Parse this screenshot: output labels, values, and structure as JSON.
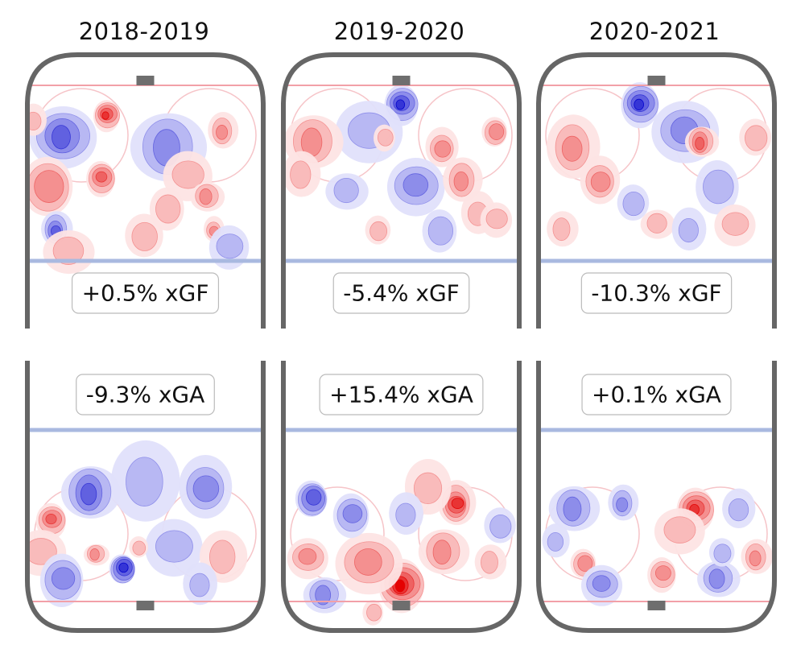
{
  "chart_data": {
    "type": "heatmap",
    "description_free": true,
    "columns": [
      {
        "season": "2018-2019",
        "offense": {
          "label": "+0.5% xGF",
          "value_pct": 0.5,
          "blobs": [
            {
              "x": -14,
              "y": 78,
              "a": 0.85,
              "s": 3.5
            },
            {
              "x": -30,
              "y": 70,
              "a": -0.6,
              "s": 8
            },
            {
              "x": 8,
              "y": 66,
              "a": -0.5,
              "s": 9
            },
            {
              "x": 28,
              "y": 72,
              "a": 0.5,
              "s": 4
            },
            {
              "x": -40,
              "y": 76,
              "a": 0.4,
              "s": 4
            },
            {
              "x": -35,
              "y": 52,
              "a": 0.45,
              "s": 8
            },
            {
              "x": -16,
              "y": 55,
              "a": 0.6,
              "s": 4
            },
            {
              "x": 15,
              "y": 56,
              "a": 0.3,
              "s": 6
            },
            {
              "x": 22,
              "y": 48,
              "a": 0.55,
              "s": 4
            },
            {
              "x": -32,
              "y": 36,
              "a": -0.7,
              "s": 4
            },
            {
              "x": 25,
              "y": 36,
              "a": 0.5,
              "s": 3
            },
            {
              "x": 0,
              "y": 34,
              "a": 0.35,
              "s": 6
            },
            {
              "x": 8,
              "y": 44,
              "a": 0.3,
              "s": 5
            },
            {
              "x": 30,
              "y": 30,
              "a": -0.3,
              "s": 5
            },
            {
              "x": -28,
              "y": 28,
              "a": 0.3,
              "s": 6
            }
          ]
        },
        "defense": {
          "label": "-9.3% xGA",
          "value_pct": -9.3,
          "blobs": [
            {
              "x": -34,
              "y": 62,
              "a": 0.65,
              "s": 4
            },
            {
              "x": -38,
              "y": 74,
              "a": 0.4,
              "s": 6
            },
            {
              "x": -20,
              "y": 52,
              "a": -0.6,
              "s": 7
            },
            {
              "x": 0,
              "y": 48,
              "a": -0.35,
              "s": 9
            },
            {
              "x": 22,
              "y": 50,
              "a": -0.5,
              "s": 8
            },
            {
              "x": -8,
              "y": 80,
              "a": -0.85,
              "s": 4
            },
            {
              "x": -30,
              "y": 84,
              "a": -0.5,
              "s": 6
            },
            {
              "x": 10,
              "y": 72,
              "a": -0.4,
              "s": 7
            },
            {
              "x": -18,
              "y": 75,
              "a": 0.45,
              "s": 3
            },
            {
              "x": 28,
              "y": 76,
              "a": 0.4,
              "s": 6
            },
            {
              "x": 20,
              "y": 86,
              "a": -0.3,
              "s": 5
            },
            {
              "x": -2,
              "y": 72,
              "a": 0.4,
              "s": 3
            }
          ]
        }
      },
      {
        "season": "2019-2020",
        "offense": {
          "label": "-5.4% xGF",
          "value_pct": -5.4,
          "blobs": [
            {
              "x": 0,
              "y": 82,
              "a": -0.85,
              "s": 4.5
            },
            {
              "x": -12,
              "y": 72,
              "a": -0.4,
              "s": 8
            },
            {
              "x": -32,
              "y": 68,
              "a": 0.5,
              "s": 7
            },
            {
              "x": -36,
              "y": 56,
              "a": 0.35,
              "s": 5
            },
            {
              "x": 15,
              "y": 66,
              "a": 0.55,
              "s": 5
            },
            {
              "x": 34,
              "y": 72,
              "a": 0.45,
              "s": 4
            },
            {
              "x": -6,
              "y": 70,
              "a": 0.35,
              "s": 3
            },
            {
              "x": 5,
              "y": 52,
              "a": -0.45,
              "s": 7
            },
            {
              "x": -20,
              "y": 50,
              "a": -0.4,
              "s": 5
            },
            {
              "x": 22,
              "y": 54,
              "a": 0.45,
              "s": 5
            },
            {
              "x": 28,
              "y": 42,
              "a": 0.35,
              "s": 5
            },
            {
              "x": -8,
              "y": 36,
              "a": 0.35,
              "s": 4
            },
            {
              "x": 14,
              "y": 36,
              "a": -0.3,
              "s": 5
            },
            {
              "x": 34,
              "y": 40,
              "a": 0.3,
              "s": 4
            }
          ]
        },
        "defense": {
          "label": "+15.4% xGA",
          "value_pct": 15.4,
          "blobs": [
            {
              "x": 0,
              "y": 86,
              "a": 0.95,
              "s": 6
            },
            {
              "x": -12,
              "y": 78,
              "a": 0.45,
              "s": 8
            },
            {
              "x": 15,
              "y": 74,
              "a": 0.45,
              "s": 6
            },
            {
              "x": 20,
              "y": 56,
              "a": 0.8,
              "s": 5
            },
            {
              "x": 10,
              "y": 50,
              "a": 0.4,
              "s": 7
            },
            {
              "x": -32,
              "y": 54,
              "a": -0.6,
              "s": 5
            },
            {
              "x": -18,
              "y": 60,
              "a": -0.55,
              "s": 5
            },
            {
              "x": -34,
              "y": 76,
              "a": 0.5,
              "s": 5
            },
            {
              "x": -28,
              "y": 90,
              "a": -0.45,
              "s": 5
            },
            {
              "x": 32,
              "y": 78,
              "a": 0.4,
              "s": 4
            },
            {
              "x": 2,
              "y": 60,
              "a": -0.35,
              "s": 5
            },
            {
              "x": 36,
              "y": 64,
              "a": -0.3,
              "s": 5
            },
            {
              "x": -10,
              "y": 96,
              "a": 0.4,
              "s": 3
            }
          ]
        }
      },
      {
        "season": "2020-2021",
        "offense": {
          "label": "-10.3% xGF",
          "value_pct": -10.3,
          "blobs": [
            {
              "x": -6,
              "y": 82,
              "a": -0.85,
              "s": 5
            },
            {
              "x": 10,
              "y": 72,
              "a": -0.45,
              "s": 8
            },
            {
              "x": 16,
              "y": 68,
              "a": 0.7,
              "s": 4
            },
            {
              "x": -30,
              "y": 66,
              "a": 0.45,
              "s": 7
            },
            {
              "x": -20,
              "y": 54,
              "a": 0.45,
              "s": 6
            },
            {
              "x": 36,
              "y": 70,
              "a": 0.35,
              "s": 5
            },
            {
              "x": 22,
              "y": 52,
              "a": -0.4,
              "s": 6
            },
            {
              "x": 28,
              "y": 38,
              "a": 0.4,
              "s": 5
            },
            {
              "x": 0,
              "y": 38,
              "a": 0.35,
              "s": 4
            },
            {
              "x": -34,
              "y": 36,
              "a": 0.35,
              "s": 4
            },
            {
              "x": 12,
              "y": 36,
              "a": -0.3,
              "s": 5
            },
            {
              "x": -8,
              "y": 46,
              "a": -0.3,
              "s": 5
            }
          ]
        },
        "defense": {
          "label": "+0.1% xGA",
          "value_pct": 0.1,
          "blobs": [
            {
              "x": 14,
              "y": 58,
              "a": 0.8,
              "s": 5
            },
            {
              "x": 8,
              "y": 66,
              "a": 0.4,
              "s": 6
            },
            {
              "x": -30,
              "y": 58,
              "a": -0.55,
              "s": 6
            },
            {
              "x": -12,
              "y": 56,
              "a": -0.45,
              "s": 4
            },
            {
              "x": 30,
              "y": 58,
              "a": -0.35,
              "s": 5
            },
            {
              "x": -26,
              "y": 78,
              "a": 0.5,
              "s": 4
            },
            {
              "x": 2,
              "y": 82,
              "a": 0.55,
              "s": 4
            },
            {
              "x": -20,
              "y": 86,
              "a": -0.5,
              "s": 5
            },
            {
              "x": 22,
              "y": 84,
              "a": -0.5,
              "s": 5
            },
            {
              "x": 36,
              "y": 76,
              "a": 0.45,
              "s": 4
            },
            {
              "x": -36,
              "y": 70,
              "a": -0.35,
              "s": 4
            },
            {
              "x": 24,
              "y": 74,
              "a": -0.3,
              "s": 4
            }
          ]
        }
      }
    ],
    "colors": {
      "positive": "#ff0000",
      "negative": "#0000ff",
      "rink_border": "#666666",
      "blue_line": "#a9b9e0",
      "goal_line": "#f2a0a8",
      "goal": "#6e6e6e"
    },
    "rink": {
      "width_ft": 85,
      "zone_length_ft": 100
    }
  }
}
